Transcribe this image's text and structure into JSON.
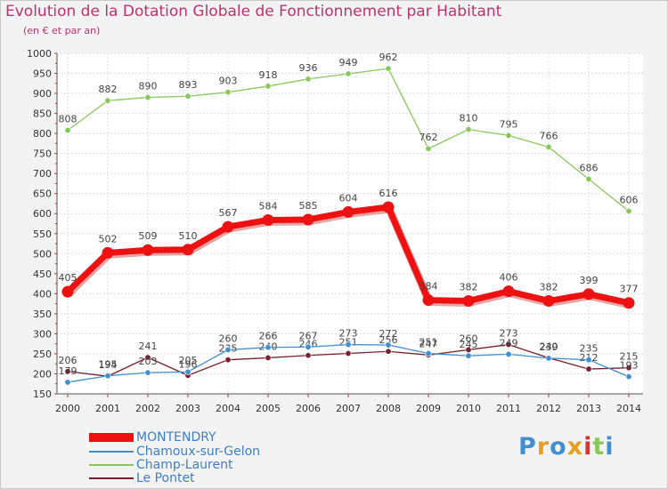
{
  "title": "Evolution de la Dotation Globale de Fonctionnement par Habitant",
  "subtitle": "(en € et par an)",
  "logo": "Proxiti",
  "chart_data": {
    "type": "line",
    "title": "Evolution de la Dotation Globale de Fonctionnement par Habitant",
    "ylabel": "(en € et par an)",
    "xlabel": "",
    "ylim": [
      150,
      1000
    ],
    "yticks": [
      150,
      200,
      250,
      300,
      350,
      400,
      450,
      500,
      550,
      600,
      650,
      700,
      750,
      800,
      850,
      900,
      950,
      1000
    ],
    "categories": [
      "2000",
      "2001",
      "2002",
      "2003",
      "2004",
      "2005",
      "2006",
      "2007",
      "2008",
      "2009",
      "2010",
      "2011",
      "2012",
      "2013",
      "2014"
    ],
    "legend_position": "bottom-left",
    "series": [
      {
        "name": "Champ-Laurent",
        "color": "#88c85a",
        "labels": true,
        "values": [
          808,
          882,
          890,
          893,
          903,
          918,
          936,
          949,
          962,
          762,
          810,
          795,
          766,
          686,
          606
        ]
      },
      {
        "name": "Le Pontet",
        "color": "#7a2030",
        "labels": true,
        "values": [
          206,
          194,
          241,
          196,
          235,
          240,
          246,
          251,
          256,
          247,
          260,
          273,
          240,
          212,
          215
        ]
      },
      {
        "name": "Chamoux-sur-Gelon",
        "color": "#3f8fd2",
        "labels": true,
        "values": [
          179,
          195,
          203,
          205,
          260,
          266,
          267,
          273,
          272,
          251,
          245,
          249,
          239,
          235,
          193
        ]
      },
      {
        "name": "MONTENDRY",
        "color": "#ee1111",
        "labels": true,
        "values": [
          405,
          502,
          509,
          510,
          567,
          584,
          585,
          604,
          616,
          384,
          382,
          406,
          382,
          399,
          377
        ]
      }
    ],
    "legend": [
      {
        "name": "MONTENDRY",
        "color": "#ee1111"
      },
      {
        "name": "Chamoux-sur-Gelon",
        "color": "#3f8fd2"
      },
      {
        "name": "Champ-Laurent",
        "color": "#88c85a"
      },
      {
        "name": "Le Pontet",
        "color": "#7a2030"
      }
    ]
  }
}
